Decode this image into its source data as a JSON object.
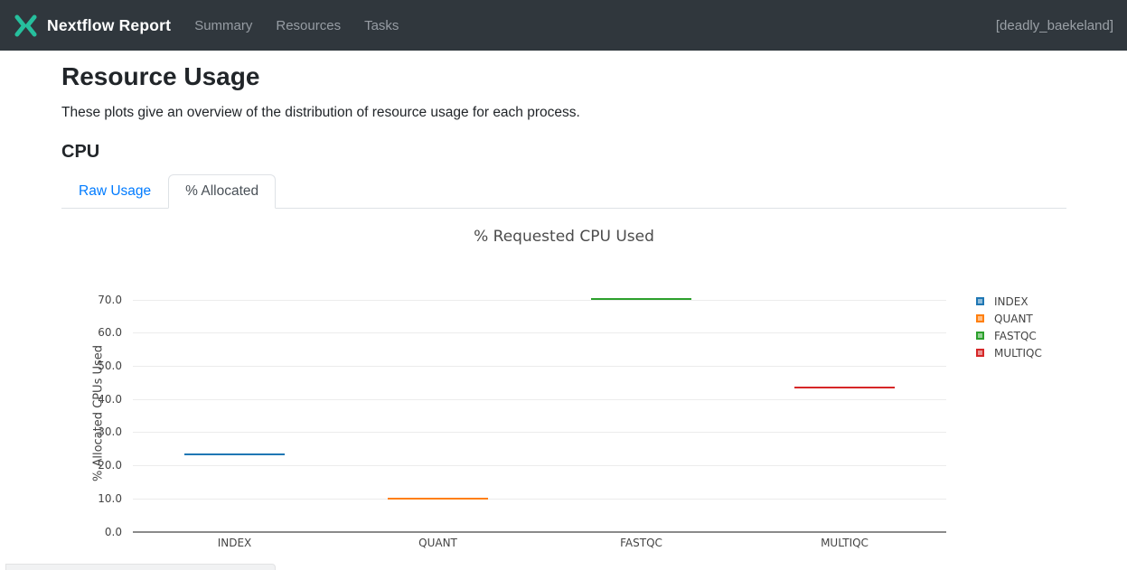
{
  "header": {
    "brand": "Nextflow Report",
    "brand_color": "#26bf9d",
    "nav": [
      "Summary",
      "Resources",
      "Tasks"
    ],
    "run_name": "[deadly_baekeland]"
  },
  "page": {
    "title": "Resource Usage",
    "description": "These plots give an overview of the distribution of resource usage for each process.",
    "section_title": "CPU"
  },
  "tabs": [
    {
      "label": "Raw Usage",
      "active": false
    },
    {
      "label": "% Allocated",
      "active": true
    }
  ],
  "chart_data": {
    "type": "box",
    "title": "% Requested CPU Used",
    "ylabel": "% Allocated CPUs Used",
    "xlabel": "",
    "categories": [
      "INDEX",
      "QUANT",
      "FASTQC",
      "MULTIQC"
    ],
    "values": [
      22.9,
      9.7,
      69.9,
      43.1
    ],
    "series_colors": [
      "#1f77b4",
      "#ff7f0e",
      "#2ca02c",
      "#d62728"
    ],
    "ylim": [
      0,
      75
    ],
    "yticks": [
      0,
      10,
      20,
      30,
      40,
      50,
      60,
      70
    ],
    "ytick_format": "one_decimal",
    "grid": true,
    "legend": [
      "INDEX",
      "QUANT",
      "FASTQC",
      "MULTIQC"
    ],
    "legend_position": "right"
  }
}
